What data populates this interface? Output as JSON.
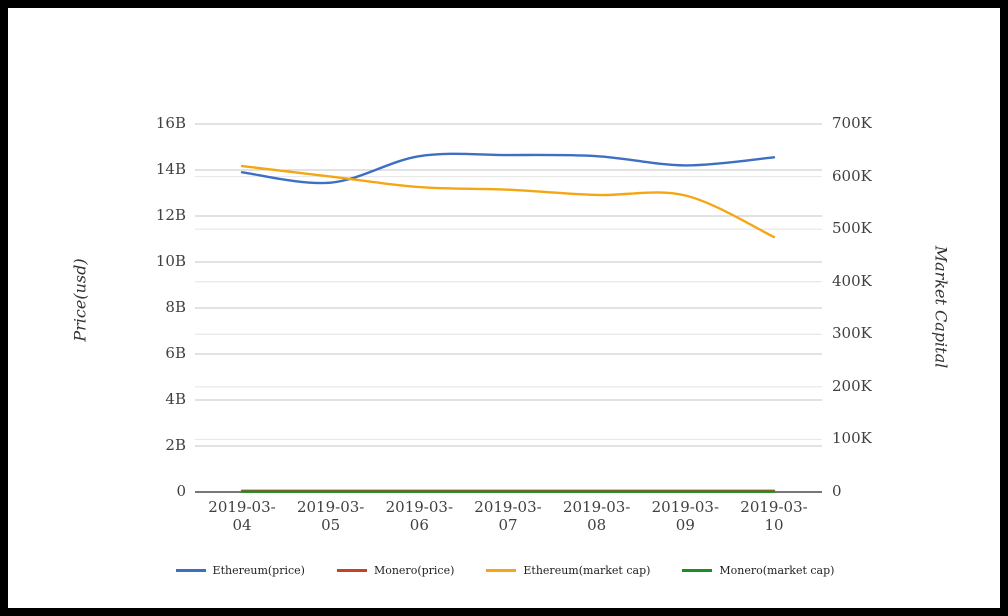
{
  "page": {
    "background": "#ffffff",
    "frame_color": "#000000"
  },
  "chart_data": {
    "type": "line",
    "title": "",
    "x_categories": [
      "2019-03-04",
      "2019-03-05",
      "2019-03-06",
      "2019-03-07",
      "2019-03-08",
      "2019-03-09",
      "2019-03-10"
    ],
    "axes": {
      "left": {
        "label": "Price(usd)",
        "ticks": [
          "0",
          "2B",
          "4B",
          "6B",
          "8B",
          "10B",
          "12B",
          "14B",
          "16B"
        ],
        "range": [
          0,
          16
        ],
        "unit": "B"
      },
      "right": {
        "label": "Market Capital",
        "ticks": [
          "0",
          "100K",
          "200K",
          "300K",
          "400K",
          "500K",
          "600K",
          "700K"
        ],
        "range": [
          0,
          700
        ],
        "unit": "K"
      }
    },
    "series": [
      {
        "name": "Ethereum(price)",
        "axis": "left",
        "color": "#3d6fc4",
        "values": [
          13.9,
          13.45,
          14.6,
          14.65,
          14.6,
          14.2,
          14.55
        ]
      },
      {
        "name": "Monero(price)",
        "axis": "left",
        "color": "#c54227",
        "values": [
          0.05,
          0.05,
          0.05,
          0.05,
          0.05,
          0.05,
          0.05
        ]
      },
      {
        "name": "Ethereum(market cap)",
        "axis": "right",
        "color": "#f5a614",
        "values": [
          620,
          600,
          580,
          575,
          565,
          564,
          485
        ]
      },
      {
        "name": "Monero(market cap)",
        "axis": "right",
        "color": "#1a8f22",
        "values": [
          0.5,
          0.5,
          0.5,
          0.5,
          0.5,
          0.5,
          0.5
        ]
      }
    ],
    "legend_position": "bottom",
    "grid": true,
    "gridline_color_left": "#c6c6c6",
    "gridline_color_right": "#e4e4e4",
    "baseline_color": "#4a4a4a"
  }
}
